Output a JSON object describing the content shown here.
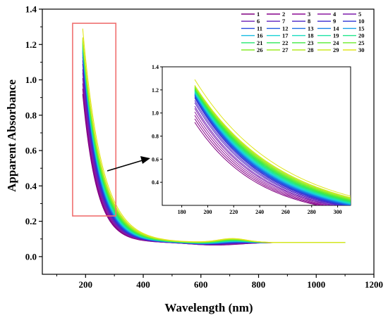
{
  "chart_data": {
    "type": "line",
    "title": "",
    "xlabel": "Wavelength (nm)",
    "ylabel": "Apparent Absorbance",
    "xlim": [
      50,
      1200
    ],
    "ylim": [
      -0.1,
      1.4
    ],
    "xticks": [
      "200",
      "400",
      "600",
      "800",
      "1000",
      "1200"
    ],
    "yticks": [
      "0.0",
      "0.2",
      "0.4",
      "0.6",
      "0.8",
      "1.0",
      "1.2",
      "1.4"
    ],
    "x_range": [
      190,
      1100
    ],
    "grid": false,
    "legend_position": "top-right",
    "legend_entries": [
      "1",
      "2",
      "3",
      "4",
      "5",
      "6",
      "7",
      "8",
      "9",
      "10",
      "11",
      "12",
      "13",
      "14",
      "15",
      "16",
      "17",
      "18",
      "19",
      "20",
      "21",
      "22",
      "23",
      "24",
      "25",
      "26",
      "27",
      "28",
      "29",
      "30"
    ],
    "series_count": 30,
    "peak_absorbance_at_190nm": [
      0.92,
      0.95,
      0.98,
      1.01,
      1.04,
      1.06,
      1.09,
      1.11,
      1.13,
      1.14,
      1.15,
      1.155,
      1.16,
      1.165,
      1.17,
      1.175,
      1.18,
      1.185,
      1.19,
      1.195,
      1.2,
      1.205,
      1.21,
      1.215,
      1.22,
      1.225,
      1.23,
      1.235,
      1.24,
      1.29
    ],
    "colors": [
      "#800080",
      "#86008a",
      "#8c0a94",
      "#8b1aa0",
      "#7d1cac",
      "#6d1fb6",
      "#5b22c0",
      "#4a26c8",
      "#3a2bd0",
      "#2f36d6",
      "#2648dc",
      "#1e5ae0",
      "#1a6ee4",
      "#1882e6",
      "#17a0e6",
      "#16bce2",
      "#16d2d6",
      "#18dcc0",
      "#1ce2a4",
      "#20e68a",
      "#26e870",
      "#2ee85a",
      "#40ea44",
      "#56ec34",
      "#6cec2c",
      "#86ec28",
      "#9eec24",
      "#b6ea22",
      "#cde820",
      "#e2e61e"
    ],
    "inset": {
      "xlim": [
        165,
        310
      ],
      "ylim": [
        0.2,
        1.4
      ],
      "xticks": [
        "180",
        "200",
        "220",
        "240",
        "260",
        "280",
        "300"
      ],
      "yticks": [
        "0.4",
        "0.6",
        "0.8",
        "1.0",
        "1.2",
        "1.4"
      ]
    }
  }
}
